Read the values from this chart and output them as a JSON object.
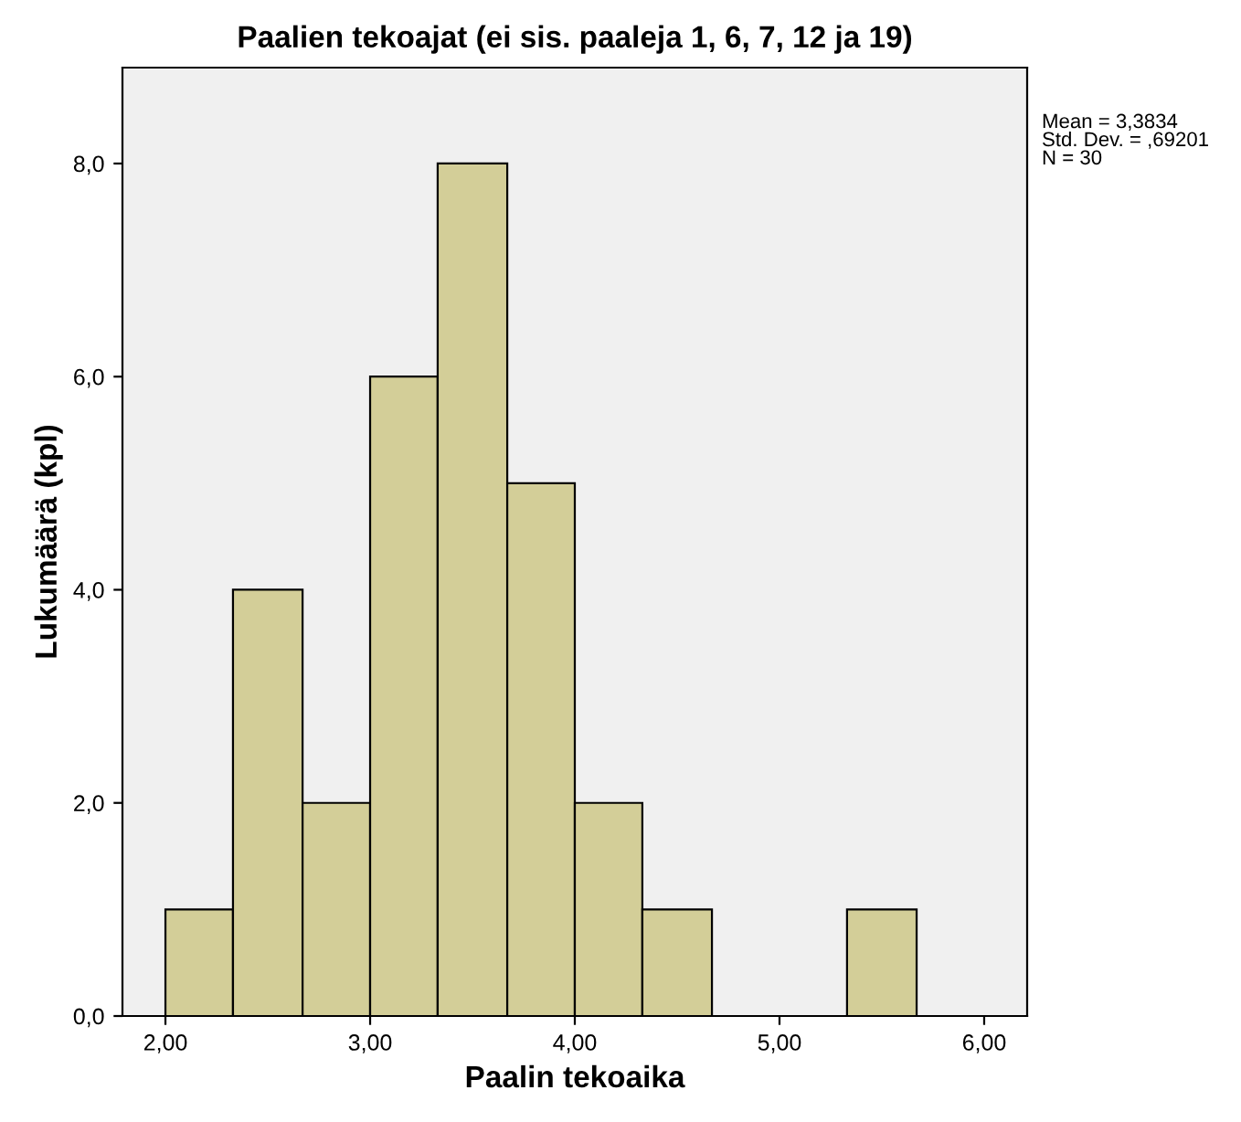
{
  "chart_data": {
    "type": "histogram",
    "title": "Paalien tekoajat (ei sis. paaleja 1, 6, 7, 12 ja 19)",
    "xlabel": "Paalin tekoaika",
    "ylabel": "Lukumäärä (kpl)",
    "bins": [
      2.0,
      2.33,
      2.67,
      3.0,
      3.33,
      3.67,
      4.0,
      4.33,
      4.67,
      5.33,
      5.67
    ],
    "values": [
      1,
      4,
      2,
      6,
      8,
      5,
      2,
      1,
      0,
      1
    ],
    "color": "#d3ce98",
    "xlim": [
      1.79,
      6.21
    ],
    "ylim": [
      0,
      8.9
    ],
    "xticks": [
      {
        "value": 2,
        "label": "2,00"
      },
      {
        "value": 3,
        "label": "3,00"
      },
      {
        "value": 4,
        "label": "4,00"
      },
      {
        "value": 5,
        "label": "5,00"
      },
      {
        "value": 6,
        "label": "6,00"
      }
    ],
    "yticks": [
      {
        "value": 0,
        "label": "0,0"
      },
      {
        "value": 2,
        "label": "2,0"
      },
      {
        "value": 4,
        "label": "4,0"
      },
      {
        "value": 6,
        "label": "6,0"
      },
      {
        "value": 8,
        "label": "8,0"
      }
    ],
    "annotations": [
      "Mean = 3,3834\nStd. Dev. = ,69201\nN = 30"
    ],
    "grid": false,
    "legend": false
  }
}
